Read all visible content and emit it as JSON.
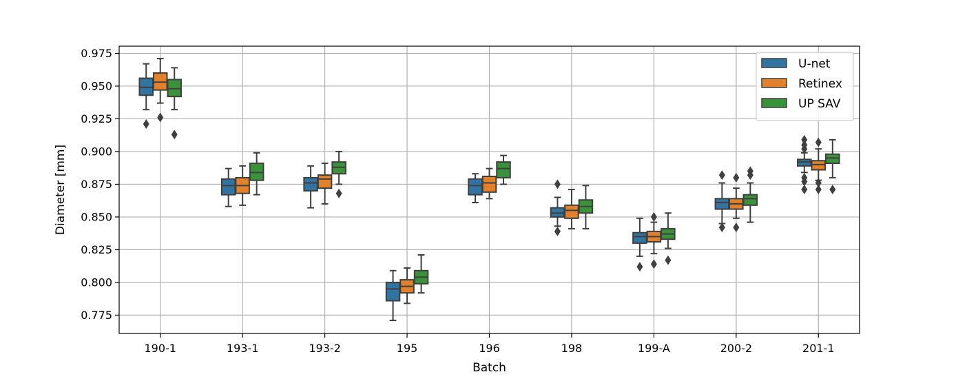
{
  "chart_data": {
    "type": "box",
    "xlabel": "Batch",
    "ylabel": "Diameter [mm]",
    "ylim": [
      0.761,
      0.9805
    ],
    "yticks": [
      0.775,
      0.8,
      0.825,
      0.85,
      0.875,
      0.9,
      0.925,
      0.95,
      0.975
    ],
    "ytick_labels": [
      "0.775",
      "0.800",
      "0.825",
      "0.850",
      "0.875",
      "0.900",
      "0.925",
      "0.950",
      "0.975"
    ],
    "grid": true,
    "legend_position": "top-right",
    "categories": [
      "190-1",
      "193-1",
      "193-2",
      "195",
      "196",
      "198",
      "199-A",
      "200-2",
      "201-1"
    ],
    "series": [
      {
        "name": "U-net",
        "color": "#3274a1",
        "boxes": [
          {
            "whisker_low": 0.932,
            "q1": 0.943,
            "median": 0.949,
            "q3": 0.956,
            "whisker_high": 0.967,
            "outliers": [
              0.921
            ]
          },
          {
            "whisker_low": 0.858,
            "q1": 0.867,
            "median": 0.874,
            "q3": 0.879,
            "whisker_high": 0.887,
            "outliers": []
          },
          {
            "whisker_low": 0.857,
            "q1": 0.87,
            "median": 0.876,
            "q3": 0.88,
            "whisker_high": 0.889,
            "outliers": []
          },
          {
            "whisker_low": 0.771,
            "q1": 0.786,
            "median": 0.795,
            "q3": 0.8,
            "whisker_high": 0.809,
            "outliers": []
          },
          {
            "whisker_low": 0.861,
            "q1": 0.867,
            "median": 0.874,
            "q3": 0.879,
            "whisker_high": 0.883,
            "outliers": []
          },
          {
            "whisker_low": 0.843,
            "q1": 0.85,
            "median": 0.853,
            "q3": 0.857,
            "whisker_high": 0.865,
            "outliers": [
              0.875,
              0.839
            ]
          },
          {
            "whisker_low": 0.82,
            "q1": 0.83,
            "median": 0.835,
            "q3": 0.838,
            "whisker_high": 0.849,
            "outliers": [
              0.812
            ]
          },
          {
            "whisker_low": 0.845,
            "q1": 0.856,
            "median": 0.861,
            "q3": 0.864,
            "whisker_high": 0.876,
            "outliers": [
              0.882,
              0.842
            ]
          },
          {
            "whisker_low": 0.884,
            "q1": 0.889,
            "median": 0.892,
            "q3": 0.894,
            "whisker_high": 0.899,
            "outliers": [
              0.909,
              0.905,
              0.902,
              0.88,
              0.877,
              0.871
            ]
          }
        ]
      },
      {
        "name": "Retinex",
        "color": "#e1812c",
        "boxes": [
          {
            "whisker_low": 0.937,
            "q1": 0.947,
            "median": 0.953,
            "q3": 0.96,
            "whisker_high": 0.971,
            "outliers": [
              0.926
            ]
          },
          {
            "whisker_low": 0.859,
            "q1": 0.868,
            "median": 0.874,
            "q3": 0.88,
            "whisker_high": 0.889,
            "outliers": []
          },
          {
            "whisker_low": 0.86,
            "q1": 0.872,
            "median": 0.879,
            "q3": 0.882,
            "whisker_high": 0.891,
            "outliers": []
          },
          {
            "whisker_low": 0.784,
            "q1": 0.792,
            "median": 0.797,
            "q3": 0.802,
            "whisker_high": 0.811,
            "outliers": []
          },
          {
            "whisker_low": 0.864,
            "q1": 0.869,
            "median": 0.876,
            "q3": 0.881,
            "whisker_high": 0.887,
            "outliers": []
          },
          {
            "whisker_low": 0.841,
            "q1": 0.849,
            "median": 0.855,
            "q3": 0.859,
            "whisker_high": 0.871,
            "outliers": []
          },
          {
            "whisker_low": 0.822,
            "q1": 0.831,
            "median": 0.835,
            "q3": 0.839,
            "whisker_high": 0.846,
            "outliers": [
              0.85,
              0.814
            ]
          },
          {
            "whisker_low": 0.849,
            "q1": 0.856,
            "median": 0.86,
            "q3": 0.864,
            "whisker_high": 0.872,
            "outliers": [
              0.88,
              0.842
            ]
          },
          {
            "whisker_low": 0.878,
            "q1": 0.886,
            "median": 0.89,
            "q3": 0.893,
            "whisker_high": 0.902,
            "outliers": [
              0.907,
              0.876,
              0.871
            ]
          }
        ]
      },
      {
        "name": "UP SAV",
        "color": "#3a923a",
        "boxes": [
          {
            "whisker_low": 0.932,
            "q1": 0.942,
            "median": 0.948,
            "q3": 0.955,
            "whisker_high": 0.964,
            "outliers": [
              0.913
            ]
          },
          {
            "whisker_low": 0.867,
            "q1": 0.878,
            "median": 0.884,
            "q3": 0.891,
            "whisker_high": 0.899,
            "outliers": []
          },
          {
            "whisker_low": 0.875,
            "q1": 0.883,
            "median": 0.888,
            "q3": 0.892,
            "whisker_high": 0.9,
            "outliers": [
              0.868
            ]
          },
          {
            "whisker_low": 0.792,
            "q1": 0.799,
            "median": 0.804,
            "q3": 0.809,
            "whisker_high": 0.821,
            "outliers": []
          },
          {
            "whisker_low": 0.875,
            "q1": 0.88,
            "median": 0.887,
            "q3": 0.892,
            "whisker_high": 0.897,
            "outliers": []
          },
          {
            "whisker_low": 0.841,
            "q1": 0.853,
            "median": 0.858,
            "q3": 0.863,
            "whisker_high": 0.874,
            "outliers": []
          },
          {
            "whisker_low": 0.826,
            "q1": 0.833,
            "median": 0.837,
            "q3": 0.841,
            "whisker_high": 0.853,
            "outliers": [
              0.817
            ]
          },
          {
            "whisker_low": 0.846,
            "q1": 0.859,
            "median": 0.864,
            "q3": 0.867,
            "whisker_high": 0.876,
            "outliers": [
              0.885,
              0.882
            ]
          },
          {
            "whisker_low": 0.88,
            "q1": 0.891,
            "median": 0.895,
            "q3": 0.898,
            "whisker_high": 0.909,
            "outliers": [
              0.871
            ]
          }
        ]
      }
    ]
  }
}
